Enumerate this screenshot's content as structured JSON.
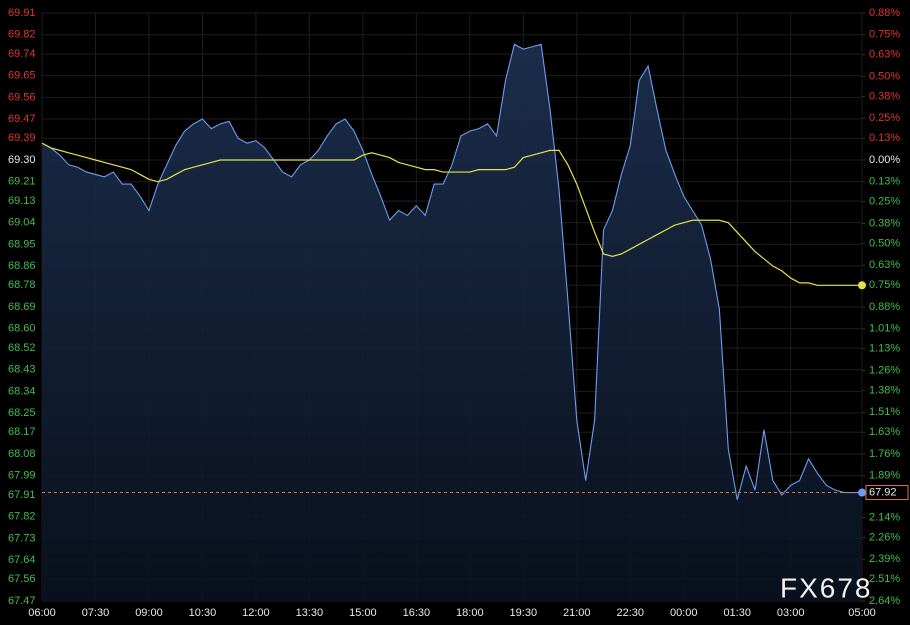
{
  "chart_data": {
    "type": "line",
    "watermark": "FX678",
    "categories": [
      "06:00",
      null,
      null,
      null,
      null,
      null,
      "07:30",
      null,
      null,
      null,
      null,
      null,
      "09:00",
      null,
      null,
      null,
      null,
      null,
      "10:30",
      null,
      null,
      null,
      null,
      null,
      "12:00",
      null,
      null,
      null,
      null,
      null,
      "13:30",
      null,
      null,
      null,
      null,
      null,
      "15:00",
      null,
      null,
      null,
      null,
      null,
      "16:30",
      null,
      null,
      null,
      null,
      null,
      "18:00",
      null,
      null,
      null,
      null,
      null,
      "19:30",
      null,
      null,
      null,
      null,
      null,
      "21:00",
      null,
      null,
      null,
      null,
      null,
      "22:30",
      null,
      null,
      null,
      null,
      null,
      "00:00",
      null,
      null,
      null,
      null,
      null,
      "01:30",
      null,
      null,
      null,
      null,
      null,
      "03:00",
      null,
      null,
      null,
      null,
      null,
      null,
      null,
      "05:00"
    ],
    "series": [
      {
        "name": "price",
        "color": "#6f9cf0",
        "values": [
          69.37,
          69.35,
          69.32,
          69.28,
          69.27,
          69.25,
          69.24,
          69.23,
          69.25,
          69.2,
          69.2,
          69.15,
          69.09,
          69.2,
          69.28,
          69.36,
          69.42,
          69.45,
          69.47,
          69.43,
          69.45,
          69.46,
          69.39,
          69.37,
          69.38,
          69.35,
          69.3,
          69.25,
          69.23,
          69.28,
          69.3,
          69.34,
          69.4,
          69.45,
          69.47,
          69.42,
          69.34,
          69.24,
          69.15,
          69.05,
          69.09,
          69.07,
          69.11,
          69.07,
          69.2,
          69.2,
          69.28,
          69.4,
          69.42,
          69.43,
          69.45,
          69.4,
          69.63,
          69.78,
          69.76,
          69.77,
          69.78,
          69.51,
          69.18,
          68.72,
          68.22,
          67.97,
          68.22,
          69.01,
          69.09,
          69.24,
          69.36,
          69.63,
          69.69,
          69.51,
          69.34,
          69.24,
          69.15,
          69.09,
          69.03,
          68.89,
          68.68,
          68.1,
          67.89,
          68.03,
          67.93,
          68.18,
          67.97,
          67.91,
          67.95,
          67.97,
          68.06,
          68.0,
          67.95,
          67.93,
          67.92,
          67.92,
          67.92
        ]
      },
      {
        "name": "average",
        "color": "#e8e04a",
        "values": [
          69.37,
          69.35,
          69.34,
          69.33,
          69.32,
          69.31,
          69.3,
          69.29,
          69.28,
          69.27,
          69.26,
          69.24,
          69.22,
          69.21,
          69.22,
          69.24,
          69.26,
          69.27,
          69.28,
          69.29,
          69.3,
          69.3,
          69.3,
          69.3,
          69.3,
          69.3,
          69.3,
          69.3,
          69.3,
          69.3,
          69.3,
          69.3,
          69.3,
          69.3,
          69.3,
          69.3,
          69.32,
          69.33,
          69.32,
          69.31,
          69.29,
          69.28,
          69.27,
          69.26,
          69.26,
          69.25,
          69.25,
          69.25,
          69.25,
          69.26,
          69.26,
          69.26,
          69.26,
          69.27,
          69.31,
          69.32,
          69.33,
          69.34,
          69.34,
          69.28,
          69.2,
          69.1,
          69.0,
          68.91,
          68.9,
          68.91,
          68.93,
          68.95,
          68.97,
          68.99,
          69.01,
          69.03,
          69.04,
          69.05,
          69.05,
          69.05,
          69.05,
          69.04,
          69.0,
          68.96,
          68.92,
          68.89,
          68.86,
          68.84,
          68.81,
          68.79,
          68.79,
          68.78,
          68.78,
          68.78,
          68.78,
          68.78,
          68.78
        ]
      }
    ],
    "ylim": [
      67.47,
      69.91
    ],
    "yticks": [
      69.91,
      69.82,
      69.74,
      69.65,
      69.56,
      69.47,
      69.39,
      {
        "value": 69.3,
        "label": "69.30"
      },
      69.21,
      69.13,
      69.04,
      68.95,
      68.86,
      68.78,
      68.69,
      {
        "value": 68.6,
        "label": "68.60"
      },
      68.52,
      68.43,
      68.34,
      68.25,
      68.17,
      68.08,
      67.99,
      67.91,
      67.82,
      67.73,
      67.64,
      67.56,
      67.47
    ],
    "y2lim": [
      -2.64,
      0.88
    ],
    "y2ticks": [
      {
        "value": 0.88,
        "label": "0.88%"
      },
      {
        "value": 0.75,
        "label": "0.75%"
      },
      {
        "value": 0.63,
        "label": "0.63%"
      },
      {
        "value": 0.5,
        "label": "0.50%"
      },
      {
        "value": 0.38,
        "label": "0.38%"
      },
      {
        "value": 0.25,
        "label": "0.25%"
      },
      {
        "value": 0.13,
        "label": "0.13%"
      },
      {
        "value": 0,
        "label": "0.00%"
      },
      {
        "value": -0.13,
        "label": "0.13%"
      },
      {
        "value": -0.25,
        "label": "0.25%"
      },
      {
        "value": -0.38,
        "label": "0.38%"
      },
      {
        "value": -0.5,
        "label": "0.50%"
      },
      {
        "value": -0.63,
        "label": "0.63%"
      },
      {
        "value": -0.75,
        "label": "0.75%"
      },
      {
        "value": -0.88,
        "label": "0.88%"
      },
      {
        "value": -1.01,
        "label": "1.01%"
      },
      {
        "value": -1.13,
        "label": "1.13%"
      },
      {
        "value": -1.26,
        "label": "1.26%"
      },
      {
        "value": -1.38,
        "label": "1.38%"
      },
      {
        "value": -1.51,
        "label": "1.51%"
      },
      {
        "value": -1.63,
        "label": "1.63%"
      },
      {
        "value": -1.76,
        "label": "1.76%"
      },
      {
        "value": -1.89,
        "label": "1.89%"
      },
      {
        "value": -2.01,
        "label": "2.01%"
      },
      {
        "value": -2.14,
        "label": "2.14%"
      },
      {
        "value": -2.26,
        "label": "2.26%"
      },
      {
        "value": -2.39,
        "label": "2.39%"
      },
      {
        "value": -2.51,
        "label": "2.51%"
      },
      {
        "value": -2.64,
        "label": "2.64%"
      }
    ],
    "grid": true
  }
}
